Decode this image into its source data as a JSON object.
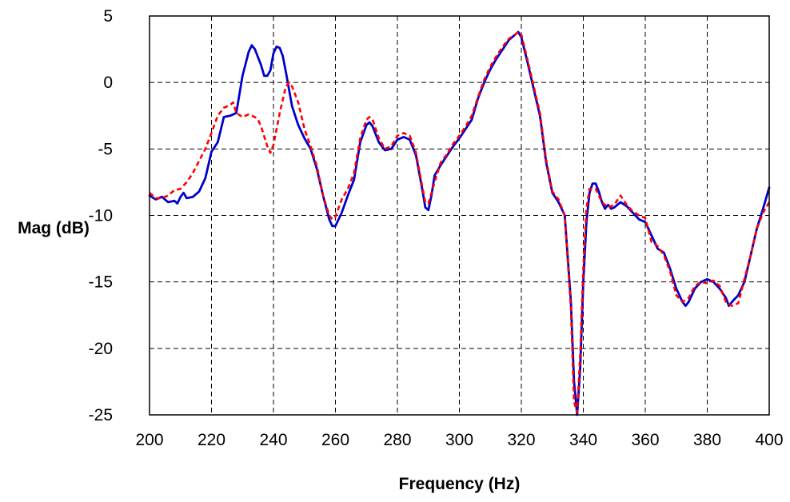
{
  "chart_data": {
    "type": "line",
    "title": "",
    "xlabel": "Frequency (Hz)",
    "ylabel": "Mag (dB)",
    "xlim": [
      200,
      400
    ],
    "ylim": [
      -25,
      5
    ],
    "x_ticks": [
      200,
      220,
      240,
      260,
      280,
      300,
      320,
      340,
      360,
      380,
      400
    ],
    "y_ticks": [
      5,
      0,
      -5,
      -10,
      -15,
      -20,
      -25
    ],
    "grid": true,
    "legend": "none",
    "series": [
      {
        "color": "#0000CC",
        "line_style": "solid",
        "points": [
          [
            200,
            -8.5
          ],
          [
            202,
            -8.8
          ],
          [
            204,
            -8.6
          ],
          [
            206,
            -9.0
          ],
          [
            208,
            -8.9
          ],
          [
            209,
            -9.1
          ],
          [
            210,
            -8.6
          ],
          [
            211,
            -8.3
          ],
          [
            212,
            -8.7
          ],
          [
            214,
            -8.6
          ],
          [
            216,
            -8.2
          ],
          [
            218,
            -7.2
          ],
          [
            220,
            -5.2
          ],
          [
            222,
            -4.5
          ],
          [
            224,
            -2.6
          ],
          [
            226,
            -2.5
          ],
          [
            228,
            -2.3
          ],
          [
            230,
            0.5
          ],
          [
            232,
            2.3
          ],
          [
            233,
            2.8
          ],
          [
            234,
            2.5
          ],
          [
            236,
            1.3
          ],
          [
            237,
            0.5
          ],
          [
            238,
            0.5
          ],
          [
            239,
            0.9
          ],
          [
            240,
            2.2
          ],
          [
            241,
            2.7
          ],
          [
            242,
            2.6
          ],
          [
            243,
            2.0
          ],
          [
            244,
            0.8
          ],
          [
            246,
            -1.8
          ],
          [
            248,
            -3.2
          ],
          [
            250,
            -4.2
          ],
          [
            252,
            -5.0
          ],
          [
            254,
            -6.5
          ],
          [
            256,
            -8.5
          ],
          [
            258,
            -10.3
          ],
          [
            259,
            -10.8
          ],
          [
            260,
            -10.8
          ],
          [
            262,
            -9.8
          ],
          [
            264,
            -8.5
          ],
          [
            266,
            -7.3
          ],
          [
            268,
            -4.5
          ],
          [
            270,
            -3.2
          ],
          [
            271,
            -3.0
          ],
          [
            272,
            -3.3
          ],
          [
            274,
            -4.5
          ],
          [
            276,
            -5.1
          ],
          [
            278,
            -5.0
          ],
          [
            280,
            -4.3
          ],
          [
            282,
            -4.1
          ],
          [
            284,
            -4.3
          ],
          [
            286,
            -5.5
          ],
          [
            288,
            -8.0
          ],
          [
            289,
            -9.4
          ],
          [
            290,
            -9.6
          ],
          [
            291,
            -8.5
          ],
          [
            292,
            -7.0
          ],
          [
            294,
            -6.2
          ],
          [
            296,
            -5.5
          ],
          [
            298,
            -4.8
          ],
          [
            300,
            -4.2
          ],
          [
            302,
            -3.5
          ],
          [
            304,
            -2.8
          ],
          [
            306,
            -1.2
          ],
          [
            308,
            0.0
          ],
          [
            310,
            1.0
          ],
          [
            312,
            1.8
          ],
          [
            314,
            2.5
          ],
          [
            316,
            3.2
          ],
          [
            318,
            3.6
          ],
          [
            319,
            3.8
          ],
          [
            320,
            3.4
          ],
          [
            322,
            1.5
          ],
          [
            324,
            -0.5
          ],
          [
            326,
            -2.5
          ],
          [
            328,
            -6.0
          ],
          [
            330,
            -8.3
          ],
          [
            332,
            -9.0
          ],
          [
            334,
            -10.0
          ],
          [
            336,
            -16.5
          ],
          [
            337,
            -22.5
          ],
          [
            338,
            -25.0
          ],
          [
            339,
            -21.5
          ],
          [
            340,
            -15.0
          ],
          [
            341,
            -10.5
          ],
          [
            342,
            -8.3
          ],
          [
            343,
            -7.6
          ],
          [
            344,
            -7.6
          ],
          [
            345,
            -8.2
          ],
          [
            346,
            -9.0
          ],
          [
            347,
            -9.5
          ],
          [
            348,
            -9.2
          ],
          [
            349,
            -9.5
          ],
          [
            350,
            -9.4
          ],
          [
            352,
            -9.0
          ],
          [
            354,
            -9.3
          ],
          [
            356,
            -9.8
          ],
          [
            358,
            -10.3
          ],
          [
            360,
            -10.5
          ],
          [
            362,
            -11.5
          ],
          [
            364,
            -12.5
          ],
          [
            366,
            -12.8
          ],
          [
            368,
            -14.0
          ],
          [
            370,
            -15.5
          ],
          [
            372,
            -16.5
          ],
          [
            373,
            -16.8
          ],
          [
            374,
            -16.5
          ],
          [
            376,
            -15.5
          ],
          [
            378,
            -15.0
          ],
          [
            380,
            -14.8
          ],
          [
            382,
            -15.0
          ],
          [
            384,
            -15.5
          ],
          [
            386,
            -16.2
          ],
          [
            387,
            -16.8
          ],
          [
            388,
            -16.5
          ],
          [
            390,
            -16.0
          ],
          [
            392,
            -15.0
          ],
          [
            394,
            -13.0
          ],
          [
            396,
            -11.0
          ],
          [
            398,
            -9.5
          ],
          [
            400,
            -7.9
          ]
        ]
      },
      {
        "color": "#FF0000",
        "line_style": "dashed",
        "points": [
          [
            200,
            -8.3
          ],
          [
            202,
            -8.7
          ],
          [
            204,
            -8.7
          ],
          [
            206,
            -8.5
          ],
          [
            208,
            -8.1
          ],
          [
            210,
            -8.0
          ],
          [
            212,
            -7.5
          ],
          [
            214,
            -6.8
          ],
          [
            216,
            -5.9
          ],
          [
            218,
            -5.0
          ],
          [
            220,
            -3.8
          ],
          [
            222,
            -2.5
          ],
          [
            224,
            -1.9
          ],
          [
            226,
            -1.7
          ],
          [
            227,
            -1.5
          ],
          [
            228,
            -2.3
          ],
          [
            230,
            -2.6
          ],
          [
            232,
            -2.4
          ],
          [
            234,
            -2.6
          ],
          [
            235,
            -2.8
          ],
          [
            236,
            -3.3
          ],
          [
            238,
            -4.8
          ],
          [
            239,
            -5.3
          ],
          [
            240,
            -4.7
          ],
          [
            242,
            -2.3
          ],
          [
            244,
            -0.3
          ],
          [
            245,
            0.0
          ],
          [
            246,
            -0.3
          ],
          [
            248,
            -1.5
          ],
          [
            250,
            -3.5
          ],
          [
            252,
            -4.8
          ],
          [
            254,
            -6.3
          ],
          [
            256,
            -8.5
          ],
          [
            258,
            -10.0
          ],
          [
            259,
            -10.3
          ],
          [
            260,
            -10.1
          ],
          [
            262,
            -8.8
          ],
          [
            264,
            -8.0
          ],
          [
            266,
            -6.8
          ],
          [
            268,
            -4.2
          ],
          [
            270,
            -2.8
          ],
          [
            271,
            -2.6
          ],
          [
            272,
            -2.8
          ],
          [
            274,
            -4.2
          ],
          [
            276,
            -5.0
          ],
          [
            278,
            -4.8
          ],
          [
            280,
            -4.0
          ],
          [
            282,
            -3.8
          ],
          [
            284,
            -4.0
          ],
          [
            286,
            -5.3
          ],
          [
            288,
            -7.8
          ],
          [
            289,
            -9.0
          ],
          [
            290,
            -9.1
          ],
          [
            292,
            -7.5
          ],
          [
            294,
            -6.0
          ],
          [
            296,
            -5.4
          ],
          [
            298,
            -4.6
          ],
          [
            300,
            -4.0
          ],
          [
            302,
            -3.3
          ],
          [
            304,
            -2.5
          ],
          [
            306,
            -1.1
          ],
          [
            308,
            0.2
          ],
          [
            310,
            1.2
          ],
          [
            312,
            2.0
          ],
          [
            314,
            2.7
          ],
          [
            316,
            3.3
          ],
          [
            318,
            3.6
          ],
          [
            319,
            3.8
          ],
          [
            320,
            3.6
          ],
          [
            322,
            1.7
          ],
          [
            324,
            -0.3
          ],
          [
            326,
            -2.3
          ],
          [
            328,
            -5.8
          ],
          [
            330,
            -8.2
          ],
          [
            332,
            -8.8
          ],
          [
            334,
            -10.0
          ],
          [
            336,
            -17.0
          ],
          [
            337,
            -24.0
          ],
          [
            338,
            -24.8
          ],
          [
            339,
            -20.5
          ],
          [
            340,
            -14.0
          ],
          [
            341,
            -9.5
          ],
          [
            342,
            -8.0
          ],
          [
            344,
            -8.0
          ],
          [
            346,
            -9.0
          ],
          [
            347,
            -9.2
          ],
          [
            348,
            -9.4
          ],
          [
            350,
            -9.2
          ],
          [
            352,
            -8.5
          ],
          [
            354,
            -9.2
          ],
          [
            356,
            -9.7
          ],
          [
            358,
            -10.0
          ],
          [
            360,
            -10.2
          ],
          [
            362,
            -12.0
          ],
          [
            364,
            -12.3
          ],
          [
            366,
            -13.0
          ],
          [
            368,
            -14.2
          ],
          [
            370,
            -16.0
          ],
          [
            372,
            -16.5
          ],
          [
            374,
            -16.2
          ],
          [
            376,
            -15.3
          ],
          [
            378,
            -15.0
          ],
          [
            380,
            -15.1
          ],
          [
            382,
            -14.9
          ],
          [
            384,
            -15.3
          ],
          [
            386,
            -16.5
          ],
          [
            388,
            -16.8
          ],
          [
            390,
            -16.6
          ],
          [
            392,
            -14.8
          ],
          [
            394,
            -13.0
          ],
          [
            396,
            -11.0
          ],
          [
            398,
            -9.8
          ],
          [
            400,
            -9.0
          ]
        ]
      }
    ]
  }
}
